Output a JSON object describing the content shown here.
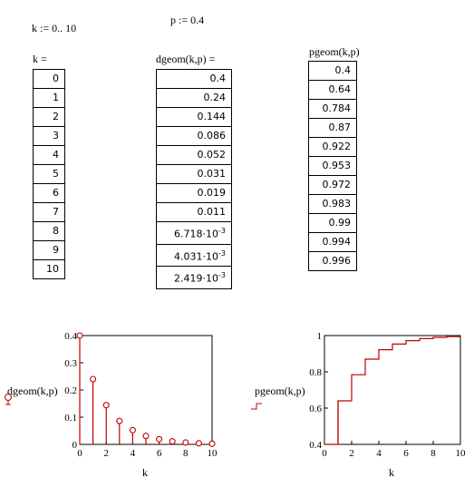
{
  "definitions": {
    "k_range": "k := 0.. 10",
    "p_assign": "p := 0.4"
  },
  "headers": {
    "k": "k =",
    "dgeom": "dgeom(k,p) =",
    "pgeom": "pgeom(k,p)"
  },
  "k_values": [
    "0",
    "1",
    "2",
    "3",
    "4",
    "5",
    "6",
    "7",
    "8",
    "9",
    "10"
  ],
  "dgeom_values": [
    {
      "m": "0.4"
    },
    {
      "m": "0.24"
    },
    {
      "m": "0.144"
    },
    {
      "m": "0.086"
    },
    {
      "m": "0.052"
    },
    {
      "m": "0.031"
    },
    {
      "m": "0.019"
    },
    {
      "m": "0.011"
    },
    {
      "m": "6.718·10",
      "e": "-3"
    },
    {
      "m": "4.031·10",
      "e": "-3"
    },
    {
      "m": "2.419·10",
      "e": "-3"
    }
  ],
  "pgeom_values": [
    "0.4",
    "0.64",
    "0.784",
    "0.87",
    "0.922",
    "0.953",
    "0.972",
    "0.983",
    "0.99",
    "0.994",
    "0.996"
  ],
  "chart_data": [
    {
      "type": "scatter",
      "style": "stem",
      "color": "#c00000",
      "x": [
        0,
        1,
        2,
        3,
        4,
        5,
        6,
        7,
        8,
        9,
        10
      ],
      "y": [
        0.4,
        0.24,
        0.144,
        0.086,
        0.052,
        0.031,
        0.019,
        0.011,
        0.006718,
        0.004031,
        0.002419
      ],
      "xlim": [
        0,
        10
      ],
      "ylim": [
        0,
        0.4
      ],
      "xticks": [
        "0",
        "2",
        "4",
        "6",
        "8",
        "10"
      ],
      "yticks": [
        "0",
        "0.1",
        "0.2",
        "0.3",
        "0.4"
      ],
      "xlabel": "k",
      "ylabel": "dgeom(k,p)"
    },
    {
      "type": "line",
      "style": "step",
      "color": "#c00000",
      "x": [
        0,
        1,
        2,
        3,
        4,
        5,
        6,
        7,
        8,
        9,
        10
      ],
      "y": [
        0.4,
        0.64,
        0.784,
        0.87,
        0.922,
        0.953,
        0.972,
        0.983,
        0.99,
        0.994,
        0.996
      ],
      "xlim": [
        0,
        10
      ],
      "ylim": [
        0.4,
        1
      ],
      "xticks": [
        "0",
        "2",
        "4",
        "6",
        "8",
        "10"
      ],
      "yticks": [
        "0.4",
        "0.6",
        "0.8",
        "1"
      ],
      "xlabel": "k",
      "ylabel": "pgeom(k,p)"
    }
  ]
}
